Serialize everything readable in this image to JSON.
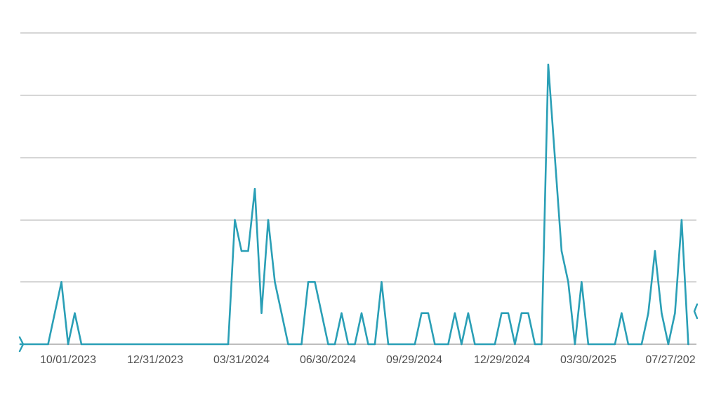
{
  "chart_data": {
    "type": "line",
    "title": "",
    "xlabel": "",
    "ylabel": "",
    "ylim": [
      0,
      9
    ],
    "y_gridlines": [
      0,
      2,
      4,
      6,
      8,
      9
    ],
    "grid": true,
    "legend": "none",
    "colors": {
      "line": "#2a9fb6",
      "grid": "#d6d6d6",
      "axis_text": "#505050"
    },
    "x_tick_labels": [
      "10/01/2023",
      "12/31/2023",
      "03/31/2024",
      "06/30/2024",
      "09/29/2024",
      "12/29/2024",
      "03/30/2025",
      "07/27/202"
    ],
    "series": [
      {
        "values": [
          [
            "2023-08-10",
            0
          ],
          [
            "2023-09-10",
            0
          ],
          [
            "2023-09-24",
            2
          ],
          [
            "2023-10-01",
            0
          ],
          [
            "2023-10-08",
            1
          ],
          [
            "2023-10-15",
            0
          ],
          [
            "2024-03-17",
            0
          ],
          [
            "2024-03-24",
            4
          ],
          [
            "2024-03-31",
            3
          ],
          [
            "2024-04-07",
            3
          ],
          [
            "2024-04-14",
            5
          ],
          [
            "2024-04-21",
            1
          ],
          [
            "2024-04-28",
            4
          ],
          [
            "2024-05-05",
            2
          ],
          [
            "2024-05-12",
            1
          ],
          [
            "2024-05-19",
            0
          ],
          [
            "2024-06-02",
            0
          ],
          [
            "2024-06-09",
            2
          ],
          [
            "2024-06-16",
            2
          ],
          [
            "2024-06-23",
            1
          ],
          [
            "2024-06-30",
            0
          ],
          [
            "2024-07-07",
            0
          ],
          [
            "2024-07-14",
            1
          ],
          [
            "2024-07-21",
            0
          ],
          [
            "2024-07-28",
            0
          ],
          [
            "2024-08-04",
            1
          ],
          [
            "2024-08-11",
            0
          ],
          [
            "2024-08-18",
            0
          ],
          [
            "2024-08-25",
            2
          ],
          [
            "2024-09-01",
            0
          ],
          [
            "2024-09-29",
            0
          ],
          [
            "2024-10-06",
            1
          ],
          [
            "2024-10-13",
            1
          ],
          [
            "2024-10-20",
            0
          ],
          [
            "2024-11-03",
            0
          ],
          [
            "2024-11-10",
            1
          ],
          [
            "2024-11-17",
            0
          ],
          [
            "2024-11-24",
            1
          ],
          [
            "2024-12-01",
            0
          ],
          [
            "2024-12-22",
            0
          ],
          [
            "2024-12-29",
            1
          ],
          [
            "2025-01-05",
            1
          ],
          [
            "2025-01-12",
            0
          ],
          [
            "2025-01-19",
            1
          ],
          [
            "2025-01-26",
            1
          ],
          [
            "2025-02-02",
            0
          ],
          [
            "2025-02-09",
            0
          ],
          [
            "2025-02-16",
            9
          ],
          [
            "2025-02-23",
            6
          ],
          [
            "2025-03-02",
            3
          ],
          [
            "2025-03-09",
            2
          ],
          [
            "2025-03-16",
            0
          ],
          [
            "2025-03-23",
            2
          ],
          [
            "2025-03-30",
            0
          ],
          [
            "2025-04-27",
            0
          ],
          [
            "2025-05-04",
            1
          ],
          [
            "2025-05-11",
            0
          ],
          [
            "2025-05-25",
            0
          ],
          [
            "2025-06-01",
            1
          ],
          [
            "2025-06-08",
            3
          ],
          [
            "2025-06-15",
            1
          ],
          [
            "2025-06-22",
            0
          ],
          [
            "2025-06-29",
            1
          ],
          [
            "2025-07-06",
            4
          ],
          [
            "2025-07-13",
            0
          ]
        ]
      }
    ]
  }
}
